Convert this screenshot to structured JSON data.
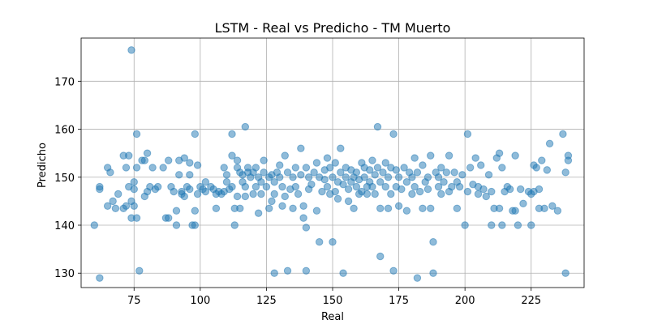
{
  "chart_data": {
    "type": "scatter",
    "title": "LSTM - Real vs Predicho - TM Muerto",
    "xlabel": "Real",
    "ylabel": "Predicho",
    "xlim": [
      55,
      245
    ],
    "ylim": [
      127,
      179
    ],
    "xticks": [
      75,
      100,
      125,
      150,
      175,
      200,
      225
    ],
    "yticks": [
      130,
      140,
      150,
      160,
      170
    ],
    "grid": true,
    "marker_color": "#1f77b4",
    "marker_alpha": 0.5,
    "points": [
      [
        74,
        176.5
      ],
      [
        60,
        140
      ],
      [
        62,
        129
      ],
      [
        62,
        148
      ],
      [
        62,
        147.5
      ],
      [
        65,
        152
      ],
      [
        65,
        144
      ],
      [
        66,
        151
      ],
      [
        67,
        145
      ],
      [
        68,
        143.5
      ],
      [
        69,
        146.5
      ],
      [
        71,
        154.5
      ],
      [
        71,
        143.5
      ],
      [
        72,
        152
      ],
      [
        72,
        144
      ],
      [
        73,
        148
      ],
      [
        73,
        154.5
      ],
      [
        74,
        145
      ],
      [
        74,
        141.5
      ],
      [
        75,
        149
      ],
      [
        75,
        144
      ],
      [
        75,
        147.5
      ],
      [
        76,
        159
      ],
      [
        76,
        152
      ],
      [
        76,
        141.5
      ],
      [
        77,
        130.5
      ],
      [
        78,
        153.5
      ],
      [
        79,
        153.5
      ],
      [
        79,
        146
      ],
      [
        80,
        147
      ],
      [
        80,
        155
      ],
      [
        81,
        148
      ],
      [
        82,
        152
      ],
      [
        83,
        147.5
      ],
      [
        84,
        148
      ],
      [
        86,
        152
      ],
      [
        87,
        141.5
      ],
      [
        88,
        141.5
      ],
      [
        88,
        153.5
      ],
      [
        89,
        148
      ],
      [
        90,
        147
      ],
      [
        91,
        140
      ],
      [
        91,
        143
      ],
      [
        92,
        153.5
      ],
      [
        92,
        150.5
      ],
      [
        93,
        147
      ],
      [
        93,
        146.5
      ],
      [
        94,
        146
      ],
      [
        94,
        154
      ],
      [
        95,
        148
      ],
      [
        96,
        150.5
      ],
      [
        96,
        153
      ],
      [
        96,
        147.5
      ],
      [
        97,
        140
      ],
      [
        98,
        140
      ],
      [
        98,
        159
      ],
      [
        98,
        143
      ],
      [
        99,
        152.5
      ],
      [
        99,
        146.5
      ],
      [
        100,
        148
      ],
      [
        101,
        147.5
      ],
      [
        102,
        149
      ],
      [
        102,
        147
      ],
      [
        104,
        148
      ],
      [
        105,
        147.5
      ],
      [
        106,
        146.5
      ],
      [
        106,
        143.5
      ],
      [
        107,
        147
      ],
      [
        108,
        146.5
      ],
      [
        109,
        152
      ],
      [
        109,
        147
      ],
      [
        110,
        150.5
      ],
      [
        110,
        149
      ],
      [
        111,
        147.5
      ],
      [
        112,
        154.5
      ],
      [
        112,
        159
      ],
      [
        112,
        148
      ],
      [
        113,
        140
      ],
      [
        113,
        143.5
      ],
      [
        114,
        152
      ],
      [
        114,
        146
      ],
      [
        114,
        153.5
      ],
      [
        115,
        151
      ],
      [
        115,
        143.5
      ],
      [
        116,
        149
      ],
      [
        116,
        150.5
      ],
      [
        117,
        148
      ],
      [
        117,
        146
      ],
      [
        117,
        160.5
      ],
      [
        118,
        151
      ],
      [
        118,
        152
      ],
      [
        119,
        150
      ],
      [
        120,
        146.5
      ],
      [
        120,
        151
      ],
      [
        121,
        148
      ],
      [
        121,
        152
      ],
      [
        122,
        142.5
      ],
      [
        122,
        150
      ],
      [
        123,
        149
      ],
      [
        123,
        146.5
      ],
      [
        124,
        151
      ],
      [
        124,
        153.5
      ],
      [
        125,
        148
      ],
      [
        126,
        143.5
      ],
      [
        126,
        150
      ],
      [
        127,
        150.5
      ],
      [
        127,
        145
      ],
      [
        128,
        146.5
      ],
      [
        128,
        130
      ],
      [
        128,
        149
      ],
      [
        129,
        151
      ],
      [
        130,
        150
      ],
      [
        130,
        152.5
      ],
      [
        131,
        148
      ],
      [
        131,
        144
      ],
      [
        132,
        154.5
      ],
      [
        132,
        146
      ],
      [
        133,
        130.5
      ],
      [
        133,
        151
      ],
      [
        134,
        147.5
      ],
      [
        135,
        150
      ],
      [
        135,
        143.5
      ],
      [
        136,
        152
      ],
      [
        136,
        148
      ],
      [
        137,
        146.5
      ],
      [
        138,
        156
      ],
      [
        138,
        150.5
      ],
      [
        139,
        141.5
      ],
      [
        139,
        144
      ],
      [
        140,
        130.5
      ],
      [
        140,
        139.5
      ],
      [
        140,
        152
      ],
      [
        141,
        150
      ],
      [
        141,
        147.5
      ],
      [
        142,
        148.5
      ],
      [
        143,
        151
      ],
      [
        144,
        143
      ],
      [
        144,
        153
      ],
      [
        145,
        136.5
      ],
      [
        145,
        150
      ],
      [
        146,
        147
      ],
      [
        147,
        149.5
      ],
      [
        147,
        151.5
      ],
      [
        148,
        154
      ],
      [
        148,
        148
      ],
      [
        149,
        146.5
      ],
      [
        149,
        152
      ],
      [
        150,
        136.5
      ],
      [
        150,
        150
      ],
      [
        151,
        147
      ],
      [
        151,
        153
      ],
      [
        152,
        149
      ],
      [
        152,
        145.5
      ],
      [
        153,
        156
      ],
      [
        153,
        151
      ],
      [
        154,
        130
      ],
      [
        154,
        148.5
      ],
      [
        155,
        150
      ],
      [
        155,
        152
      ],
      [
        156,
        145
      ],
      [
        156,
        147.5
      ],
      [
        157,
        149
      ],
      [
        157,
        151.5
      ],
      [
        158,
        150
      ],
      [
        158,
        143.5
      ],
      [
        159,
        148
      ],
      [
        159,
        151
      ],
      [
        160,
        146.5
      ],
      [
        160,
        149.5
      ],
      [
        161,
        153
      ],
      [
        161,
        147
      ],
      [
        162,
        150
      ],
      [
        162,
        152
      ],
      [
        163,
        148
      ],
      [
        163,
        146.5
      ],
      [
        164,
        149
      ],
      [
        164,
        151.5
      ],
      [
        165,
        148
      ],
      [
        165,
        153.5
      ],
      [
        166,
        150.5
      ],
      [
        166,
        146.5
      ],
      [
        167,
        160.5
      ],
      [
        167,
        152
      ],
      [
        168,
        133.5
      ],
      [
        168,
        149
      ],
      [
        168,
        143.5
      ],
      [
        169,
        151
      ],
      [
        170,
        148
      ],
      [
        170,
        153
      ],
      [
        171,
        143.5
      ],
      [
        171,
        150
      ],
      [
        172,
        146.5
      ],
      [
        172,
        152
      ],
      [
        173,
        159
      ],
      [
        173,
        130.5
      ],
      [
        174,
        148
      ],
      [
        174,
        151.5
      ],
      [
        175,
        144
      ],
      [
        175,
        150
      ],
      [
        176,
        147.5
      ],
      [
        177,
        152
      ],
      [
        178,
        149
      ],
      [
        178,
        143
      ],
      [
        179,
        151
      ],
      [
        180,
        150
      ],
      [
        180,
        146.5
      ],
      [
        181,
        154
      ],
      [
        181,
        148
      ],
      [
        182,
        151
      ],
      [
        182,
        129
      ],
      [
        183,
        147
      ],
      [
        184,
        152.5
      ],
      [
        184,
        143.5
      ],
      [
        185,
        149
      ],
      [
        186,
        150
      ],
      [
        186,
        147.5
      ],
      [
        187,
        154.5
      ],
      [
        187,
        143.5
      ],
      [
        188,
        130
      ],
      [
        188,
        136.5
      ],
      [
        189,
        151
      ],
      [
        190,
        148
      ],
      [
        190,
        150
      ],
      [
        191,
        152
      ],
      [
        191,
        146.5
      ],
      [
        192,
        149
      ],
      [
        193,
        151
      ],
      [
        194,
        154.5
      ],
      [
        194,
        147
      ],
      [
        195,
        148
      ],
      [
        196,
        151
      ],
      [
        197,
        143.5
      ],
      [
        197,
        149
      ],
      [
        198,
        148
      ],
      [
        199,
        150.5
      ],
      [
        200,
        140
      ],
      [
        201,
        159
      ],
      [
        201,
        147
      ],
      [
        202,
        152
      ],
      [
        203,
        148.5
      ],
      [
        204,
        154
      ],
      [
        205,
        148
      ],
      [
        205,
        146.5
      ],
      [
        206,
        152.5
      ],
      [
        207,
        147.5
      ],
      [
        208,
        146
      ],
      [
        209,
        150.5
      ],
      [
        210,
        140
      ],
      [
        210,
        147
      ],
      [
        211,
        143.5
      ],
      [
        212,
        154
      ],
      [
        213,
        155
      ],
      [
        213,
        143.5
      ],
      [
        214,
        140
      ],
      [
        214,
        152
      ],
      [
        215,
        147
      ],
      [
        216,
        148
      ],
      [
        217,
        147.5
      ],
      [
        218,
        143
      ],
      [
        219,
        154.5
      ],
      [
        219,
        143
      ],
      [
        220,
        140
      ],
      [
        221,
        147.5
      ],
      [
        222,
        144.5
      ],
      [
        224,
        147
      ],
      [
        225,
        146.5
      ],
      [
        225,
        140
      ],
      [
        226,
        147
      ],
      [
        226,
        152.5
      ],
      [
        227,
        152
      ],
      [
        228,
        147.5
      ],
      [
        228,
        143.5
      ],
      [
        229,
        153.5
      ],
      [
        230,
        143.5
      ],
      [
        231,
        151.5
      ],
      [
        232,
        157
      ],
      [
        233,
        144
      ],
      [
        235,
        143
      ],
      [
        237,
        159
      ],
      [
        238,
        130
      ],
      [
        238,
        151
      ],
      [
        239,
        154.5
      ],
      [
        239,
        153.5
      ]
    ]
  }
}
